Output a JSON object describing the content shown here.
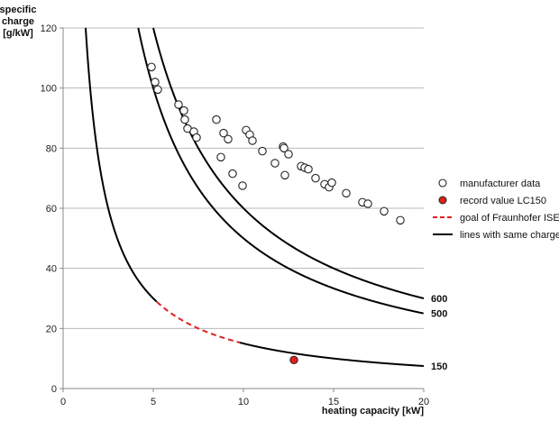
{
  "chart_data": {
    "type": "scatter",
    "xlabel": "heating capacity [kW]",
    "ylabel_lines": [
      "specific",
      "charge",
      "[g/kW]"
    ],
    "xlim": [
      0,
      20
    ],
    "ylim": [
      0,
      120
    ],
    "x_ticks": [
      0,
      5,
      10,
      15,
      20
    ],
    "y_ticks": [
      0,
      20,
      40,
      60,
      80,
      100,
      120
    ],
    "grid": "horizontal",
    "legend_position": "right",
    "colors": {
      "grid": "#b8b8b8",
      "axis": "#888888",
      "curve": "#000000",
      "goal": "#e02020",
      "record_fill": "#e02020",
      "record_stroke": "#222222",
      "marker_stroke": "#222222"
    },
    "series": [
      {
        "name": "manufacturer data",
        "marker": "open-circle",
        "points": [
          [
            4.9,
            107
          ],
          [
            5.1,
            102
          ],
          [
            5.25,
            99.5
          ],
          [
            6.4,
            94.5
          ],
          [
            6.7,
            92.5
          ],
          [
            6.75,
            89.5
          ],
          [
            6.9,
            86.5
          ],
          [
            7.25,
            85.5
          ],
          [
            7.4,
            83.5
          ],
          [
            8.5,
            89.5
          ],
          [
            8.9,
            85
          ],
          [
            9.15,
            83
          ],
          [
            8.75,
            77
          ],
          [
            9.4,
            71.5
          ],
          [
            9.95,
            67.5
          ],
          [
            10.15,
            86
          ],
          [
            10.35,
            84.5
          ],
          [
            10.5,
            82.5
          ],
          [
            11.05,
            79
          ],
          [
            11.75,
            75
          ],
          [
            12.2,
            80.5
          ],
          [
            12.25,
            80
          ],
          [
            12.5,
            78
          ],
          [
            12.3,
            71
          ],
          [
            13.2,
            74
          ],
          [
            13.4,
            73.5
          ],
          [
            13.6,
            73
          ],
          [
            14.0,
            70
          ],
          [
            14.5,
            68
          ],
          [
            14.75,
            67
          ],
          [
            14.9,
            68.5
          ],
          [
            15.7,
            65
          ],
          [
            16.6,
            62
          ],
          [
            16.9,
            61.5
          ],
          [
            17.8,
            59
          ],
          [
            18.7,
            56
          ]
        ]
      },
      {
        "name": "record value LC150",
        "marker": "filled-circle",
        "points": [
          [
            12.8,
            9.5
          ]
        ]
      },
      {
        "name": "goal of Fraunhofer ISE",
        "line": "dashed",
        "x_range": [
          5.2,
          9.8
        ]
      },
      {
        "name": "lines with same charge",
        "line": "solid"
      }
    ],
    "curves": [
      {
        "label": "600",
        "charge": 600,
        "x_range": [
          4.2,
          20
        ]
      },
      {
        "label": "500",
        "charge": 500,
        "x_range": [
          5.0,
          20
        ]
      },
      {
        "label": "150",
        "charge": 150,
        "x_range": [
          1.25,
          20
        ]
      }
    ]
  }
}
